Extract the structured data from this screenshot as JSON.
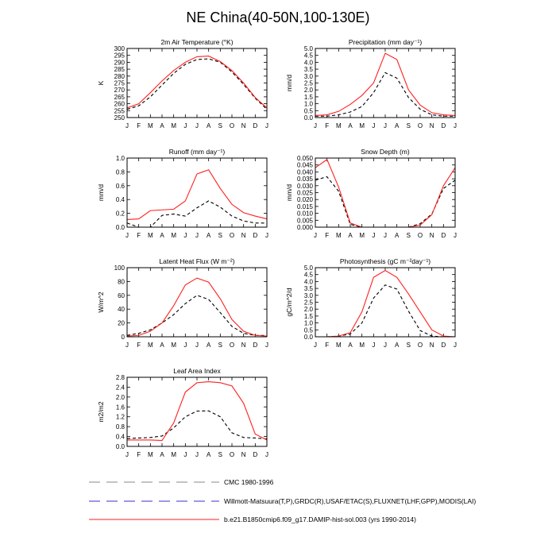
{
  "title": "NE China(40-50N,100-130E)",
  "months": [
    "J",
    "F",
    "M",
    "A",
    "M",
    "J",
    "J",
    "A",
    "S",
    "O",
    "N",
    "D",
    "J"
  ],
  "legend": [
    {
      "label": "CMC 1980-1996",
      "color": "#888888",
      "dash": "long"
    },
    {
      "label": "Willmott-Matsuura(T,P),GRDC(R),USAF/ETAC(S),FLUXNET(LHF,GPP),MODIS(LAI)",
      "color": "#3333cc",
      "dash": "long"
    },
    {
      "label": "b.e21.B1850cmip6.f09_g17.DAMIP-hist-sol.003 (yrs 1990-2014)",
      "color": "#ff2020",
      "dash": "solid"
    }
  ],
  "chart_data": [
    {
      "type": "line",
      "title": "2m Air Temperature (°K)",
      "ylabel": "K",
      "ylim": [
        250,
        300
      ],
      "yticks": [
        "250",
        "255",
        "260",
        "265",
        "270",
        "275",
        "280",
        "285",
        "290",
        "295",
        "300"
      ],
      "x": [
        "J",
        "F",
        "M",
        "A",
        "M",
        "J",
        "J",
        "A",
        "S",
        "O",
        "N",
        "D",
        "J"
      ],
      "series": [
        {
          "style": "obs",
          "values": [
            256,
            258.5,
            265,
            273.5,
            282,
            288.5,
            292,
            292.5,
            290,
            283,
            274,
            264,
            256
          ]
        },
        {
          "style": "model",
          "values": [
            257,
            260,
            268,
            276.5,
            284,
            290,
            294,
            294.5,
            290.5,
            284,
            275,
            264.5,
            257
          ]
        }
      ]
    },
    {
      "type": "line",
      "title": "Precipitation (mm day⁻¹)",
      "ylabel": "mm/d",
      "ylim": [
        0,
        5
      ],
      "yticks": [
        "0.0",
        "0.5",
        "1.0",
        "1.5",
        "2.0",
        "2.5",
        "3.0",
        "3.5",
        "4.0",
        "4.5",
        "5.0"
      ],
      "x": [
        "J",
        "F",
        "M",
        "A",
        "M",
        "J",
        "J",
        "A",
        "S",
        "O",
        "N",
        "D",
        "J"
      ],
      "series": [
        {
          "style": "obs",
          "values": [
            0.1,
            0.1,
            0.2,
            0.4,
            0.8,
            1.8,
            3.25,
            2.85,
            1.45,
            0.6,
            0.2,
            0.1,
            0.1
          ]
        },
        {
          "style": "model",
          "values": [
            0.15,
            0.2,
            0.45,
            0.95,
            1.6,
            2.5,
            4.65,
            4.2,
            2.0,
            0.9,
            0.35,
            0.2,
            0.15
          ]
        }
      ]
    },
    {
      "type": "line",
      "title": "Runoff (mm day⁻¹)",
      "ylabel": "mm/d",
      "ylim": [
        0,
        1
      ],
      "yticks": [
        "0.0",
        "0.2",
        "0.4",
        "0.6",
        "0.8",
        "1.0"
      ],
      "x": [
        "J",
        "F",
        "M",
        "A",
        "M",
        "J",
        "J",
        "A",
        "S",
        "O",
        "N",
        "D",
        "J"
      ],
      "series": [
        {
          "style": "obs",
          "values": [
            0.06,
            0.0,
            0.0,
            0.17,
            0.19,
            0.16,
            0.28,
            0.38,
            0.29,
            0.16,
            0.09,
            0.06,
            0.06
          ]
        },
        {
          "style": "model",
          "values": [
            0.11,
            0.12,
            0.24,
            0.25,
            0.26,
            0.38,
            0.77,
            0.83,
            0.56,
            0.33,
            0.21,
            0.16,
            0.12
          ]
        }
      ]
    },
    {
      "type": "line",
      "title": "Snow Depth (m)",
      "ylabel": "mm/d",
      "ylim": [
        0,
        0.05
      ],
      "yticks": [
        "0.000",
        "0.005",
        "0.010",
        "0.015",
        "0.020",
        "0.025",
        "0.030",
        "0.035",
        "0.040",
        "0.045",
        "0.050"
      ],
      "x": [
        "J",
        "F",
        "M",
        "A",
        "M",
        "J",
        "J",
        "A",
        "S",
        "O",
        "N",
        "D",
        "J"
      ],
      "series": [
        {
          "style": "obs",
          "values": [
            0.034,
            0.0365,
            0.026,
            0.002,
            0.0,
            null,
            null,
            null,
            0.0,
            0.0025,
            0.0095,
            0.028,
            0.034
          ]
        },
        {
          "style": "model",
          "values": [
            0.043,
            0.049,
            0.029,
            0.003,
            0.0,
            null,
            null,
            null,
            0.0,
            0.0015,
            0.009,
            0.03,
            0.043
          ]
        }
      ]
    },
    {
      "type": "line",
      "title": "Latent Heat Flux (W m⁻²)",
      "ylabel": "W/m^2",
      "ylim": [
        0,
        100
      ],
      "yticks": [
        "0",
        "20",
        "40",
        "60",
        "80",
        "100"
      ],
      "x": [
        "J",
        "F",
        "M",
        "A",
        "M",
        "J",
        "J",
        "A",
        "S",
        "O",
        "N",
        "D",
        "J"
      ],
      "series": [
        {
          "style": "obs",
          "values": [
            2,
            5,
            10,
            20,
            32,
            48,
            60,
            54,
            35,
            15,
            5,
            2,
            2
          ]
        },
        {
          "style": "model",
          "values": [
            1,
            2,
            8,
            20,
            45,
            75,
            85,
            79,
            55,
            25,
            8,
            2,
            1
          ]
        }
      ]
    },
    {
      "type": "line",
      "title": "Photosynthesis (gC m⁻²day⁻¹)",
      "ylabel": "gC/m^2/d",
      "ylim": [
        0,
        5
      ],
      "yticks": [
        "0.0",
        "0.5",
        "1.0",
        "1.5",
        "2.0",
        "2.5",
        "3.0",
        "3.5",
        "4.0",
        "4.5",
        "5.0"
      ],
      "x": [
        "J",
        "F",
        "M",
        "A",
        "M",
        "J",
        "J",
        "A",
        "S",
        "O",
        "N",
        "D",
        "J"
      ],
      "series": [
        {
          "style": "obs",
          "values": [
            0.0,
            0.0,
            0.05,
            0.2,
            1.0,
            2.8,
            3.75,
            3.45,
            1.85,
            0.45,
            0.05,
            0.0,
            0.0
          ]
        },
        {
          "style": "model",
          "values": [
            0.0,
            0.0,
            0.05,
            0.3,
            1.8,
            4.3,
            4.8,
            4.3,
            3.1,
            1.8,
            0.5,
            0.05,
            0.0
          ]
        }
      ]
    },
    {
      "type": "line",
      "title": "Leaf Area Index",
      "ylabel": "m2/m2",
      "ylim": [
        0,
        2.8
      ],
      "yticks": [
        "0.0",
        "0.4",
        "0.8",
        "1.2",
        "1.6",
        "2.0",
        "2.4",
        "2.8"
      ],
      "x": [
        "J",
        "F",
        "M",
        "A",
        "M",
        "J",
        "J",
        "A",
        "S",
        "O",
        "N",
        "D",
        "J"
      ],
      "series": [
        {
          "style": "obs",
          "values": [
            0.32,
            0.34,
            0.36,
            0.42,
            0.75,
            1.2,
            1.43,
            1.44,
            1.2,
            0.55,
            0.36,
            0.34,
            0.3
          ]
        },
        {
          "style": "model",
          "values": [
            0.26,
            0.26,
            0.26,
            0.24,
            0.95,
            2.2,
            2.58,
            2.62,
            2.58,
            2.45,
            1.75,
            0.5,
            0.26
          ]
        }
      ]
    }
  ]
}
